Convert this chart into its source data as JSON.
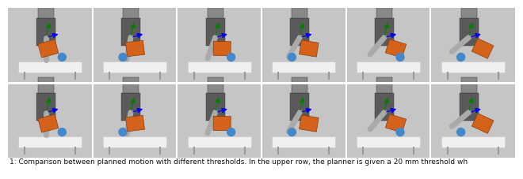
{
  "caption_full": "Fig. 1: Comparison between planned motion with different thresholds. In the upper row, the planner is given a 20 mm threshold wh...",
  "caption_line1": "1: Comparison between planned motion with different thresholds. In the upper row, the planner is given a 20 mm threshold wh",
  "background_color": "#ffffff",
  "image_area_color": "#c8c8c8",
  "num_cols": 6,
  "num_rows": 2,
  "caption_fontsize": 6.5,
  "caption_color": "#111111",
  "cell_border_color": "#ffffff",
  "robot_dark": "#5a5a5a",
  "robot_mid": "#888888",
  "robot_light": "#aaaaaa",
  "orange_color": "#d4621a",
  "orange_dark": "#8b3a0a",
  "table_color": "#e8e8e8",
  "table_edge": "#bbbbbb",
  "bg_gradient_top": "#b0b0b0",
  "bg_gradient_bot": "#d8d8d8",
  "sep_line_color": "#dddddd",
  "caption_prefix": "1: Comparison between planned motion with different thresholds. In the upper row, the planner is given a 20 mm threshold wh"
}
